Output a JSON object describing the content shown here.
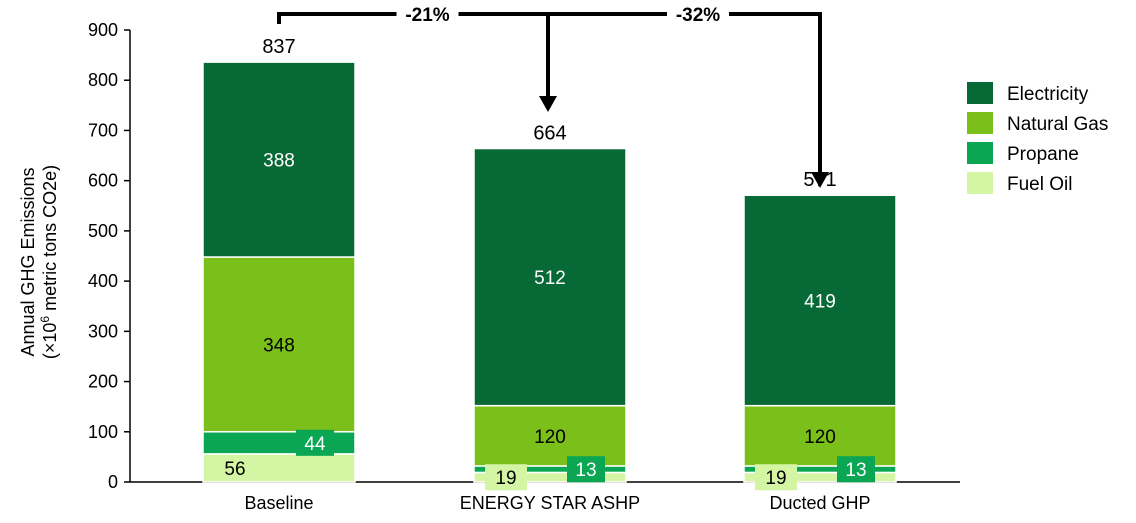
{
  "chart_data": {
    "type": "bar",
    "stacked": true,
    "ylabel_line1": "Annual GHG Emissions",
    "ylabel_line2_prefix": "(×10",
    "ylabel_line2_sup": "6",
    "ylabel_line2_suffix": " metric tons CO2e)",
    "ylim": [
      0,
      900
    ],
    "yticks": [
      "0",
      "100",
      "200",
      "300",
      "400",
      "500",
      "600",
      "700",
      "800",
      "900"
    ],
    "grid": false,
    "legend_position": "right",
    "categories": [
      "Baseline",
      "ENERGY STAR ASHP",
      "Ducted GHP"
    ],
    "totals": [
      "837",
      "664",
      "571"
    ],
    "series": [
      {
        "name": "Fuel Oil",
        "color": "#d4f5a3",
        "values": [
          56,
          19,
          19
        ],
        "labels": [
          "56",
          "19",
          "19"
        ]
      },
      {
        "name": "Propane",
        "color": "#0aa654",
        "values": [
          44,
          13,
          13
        ],
        "labels": [
          "44",
          "13",
          "13"
        ]
      },
      {
        "name": "Natural Gas",
        "color": "#7bbf1a",
        "values": [
          348,
          120,
          120
        ],
        "labels": [
          "348",
          "120",
          "120"
        ]
      },
      {
        "name": "Electricity",
        "color": "#076935",
        "values": [
          388,
          512,
          419
        ],
        "labels": [
          "388",
          "512",
          "419"
        ]
      }
    ],
    "legend_order": [
      "Electricity",
      "Natural Gas",
      "Propane",
      "Fuel Oil"
    ],
    "annotations": [
      {
        "from": "Baseline",
        "to": "ENERGY STAR ASHP",
        "text": "-21%"
      },
      {
        "from": "Baseline",
        "to": "Ducted GHP",
        "text": "-32%"
      }
    ]
  }
}
